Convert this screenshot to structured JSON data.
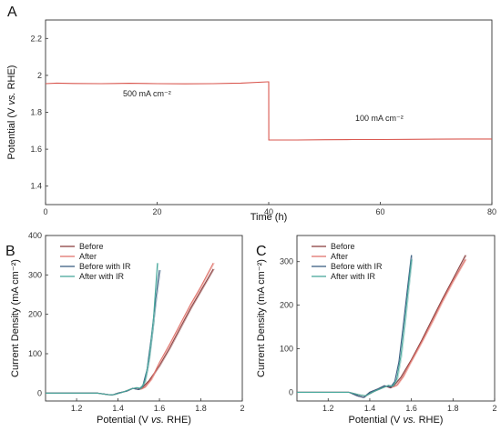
{
  "chart_data": [
    {
      "panel": "A",
      "type": "line",
      "xlabel": "Time (h)",
      "ylabel": "Potential (V vs. RHE)",
      "ylabel_parts": [
        "Potential (V ",
        "vs.",
        " RHE)"
      ],
      "xlim": [
        0,
        80
      ],
      "ylim": [
        1.3,
        2.3
      ],
      "xticks": [
        "0",
        "20",
        "40",
        "60",
        "80"
      ],
      "yticks": [
        "1.4",
        "1.6",
        "1.8",
        "2",
        "2.2"
      ],
      "annotations": [
        "500 mA cm⁻²",
        "100 mA cm⁻²"
      ],
      "color": "#d9574f",
      "series": [
        {
          "x": [
            0,
            2,
            5,
            10,
            15,
            18,
            20,
            25,
            30,
            35,
            39.8,
            40,
            40.01,
            45,
            50,
            55,
            60,
            65,
            70,
            75,
            80
          ],
          "y": [
            1.955,
            1.958,
            1.956,
            1.955,
            1.957,
            1.956,
            1.955,
            1.954,
            1.955,
            1.958,
            1.965,
            1.965,
            1.65,
            1.65,
            1.651,
            1.652,
            1.652,
            1.653,
            1.654,
            1.655,
            1.655
          ]
        }
      ]
    },
    {
      "panel": "B",
      "type": "line",
      "xlabel": "Potential (V vs. RHE)",
      "xlabel_parts": [
        "Potential (V ",
        "vs.",
        " RHE)"
      ],
      "ylabel": "Current Density (mA cm⁻²)",
      "xlim": [
        1.05,
        2.0
      ],
      "ylim": [
        -20,
        400
      ],
      "xticks": [
        "1.2",
        "1.4",
        "1.6",
        "1.8",
        "2"
      ],
      "yticks": [
        "0",
        "100",
        "200",
        "300",
        "400"
      ],
      "legend": [
        "Before",
        "After",
        "Before with IR",
        "After with IR"
      ],
      "legend_colors": [
        "#8b4040",
        "#e0746c",
        "#3c5f83",
        "#48a89c"
      ],
      "series": [
        {
          "name": "Before",
          "x": [
            1.05,
            1.3,
            1.34,
            1.37,
            1.4,
            1.44,
            1.47,
            1.5,
            1.52,
            1.55,
            1.6,
            1.65,
            1.7,
            1.75,
            1.8,
            1.86
          ],
          "y": [
            0,
            0,
            -3,
            -5,
            0,
            5,
            12,
            9,
            16,
            32,
            70,
            115,
            165,
            215,
            260,
            315
          ]
        },
        {
          "name": "After",
          "x": [
            1.05,
            1.3,
            1.35,
            1.38,
            1.42,
            1.46,
            1.49,
            1.51,
            1.53,
            1.56,
            1.6,
            1.65,
            1.7,
            1.75,
            1.8,
            1.86
          ],
          "y": [
            0,
            0,
            -4,
            -4,
            2,
            10,
            14,
            10,
            15,
            35,
            78,
            125,
            175,
            225,
            270,
            330
          ]
        },
        {
          "name": "Before with IR",
          "x": [
            1.05,
            1.3,
            1.34,
            1.37,
            1.4,
            1.44,
            1.47,
            1.5,
            1.52,
            1.54,
            1.56,
            1.58,
            1.6
          ],
          "y": [
            0,
            0,
            -3,
            -5,
            0,
            5,
            12,
            9,
            20,
            60,
            140,
            230,
            312
          ]
        },
        {
          "name": "After with IR",
          "x": [
            1.05,
            1.3,
            1.35,
            1.38,
            1.42,
            1.46,
            1.49,
            1.51,
            1.53,
            1.55,
            1.57,
            1.58,
            1.59
          ],
          "y": [
            0,
            0,
            -4,
            -4,
            2,
            10,
            14,
            12,
            30,
            90,
            180,
            255,
            330
          ]
        }
      ]
    },
    {
      "panel": "C",
      "type": "line",
      "xlabel": "Potential (V vs. RHE)",
      "xlabel_parts": [
        "Potential (V ",
        "vs.",
        " RHE)"
      ],
      "ylabel": "Current Density (mA cm⁻²)",
      "xlim": [
        1.05,
        2.0
      ],
      "ylim": [
        -20,
        360
      ],
      "xticks": [
        "1.2",
        "1.4",
        "1.6",
        "1.8",
        "2"
      ],
      "yticks": [
        "0",
        "100",
        "200",
        "300"
      ],
      "legend": [
        "Before",
        "After",
        "Before with IR",
        "After with IR"
      ],
      "legend_colors": [
        "#8b4040",
        "#e0746c",
        "#3c5f83",
        "#48a89c"
      ],
      "series": [
        {
          "name": "Before",
          "x": [
            1.05,
            1.3,
            1.34,
            1.37,
            1.4,
            1.44,
            1.47,
            1.5,
            1.52,
            1.55,
            1.6,
            1.65,
            1.7,
            1.75,
            1.8,
            1.86
          ],
          "y": [
            0,
            0,
            -8,
            -12,
            0,
            8,
            15,
            10,
            18,
            35,
            75,
            120,
            168,
            215,
            260,
            315
          ]
        },
        {
          "name": "After",
          "x": [
            1.05,
            1.3,
            1.35,
            1.38,
            1.42,
            1.46,
            1.49,
            1.51,
            1.53,
            1.56,
            1.6,
            1.65,
            1.7,
            1.75,
            1.8,
            1.86
          ],
          "y": [
            0,
            0,
            -6,
            -8,
            2,
            10,
            16,
            12,
            16,
            36,
            72,
            116,
            162,
            210,
            255,
            305
          ]
        },
        {
          "name": "Before with IR",
          "x": [
            1.05,
            1.3,
            1.34,
            1.37,
            1.4,
            1.44,
            1.47,
            1.5,
            1.52,
            1.54,
            1.56,
            1.58,
            1.6
          ],
          "y": [
            0,
            0,
            -8,
            -12,
            0,
            8,
            15,
            12,
            25,
            70,
            150,
            235,
            315
          ]
        },
        {
          "name": "After with IR",
          "x": [
            1.05,
            1.3,
            1.35,
            1.38,
            1.42,
            1.46,
            1.49,
            1.51,
            1.53,
            1.55,
            1.57,
            1.59,
            1.6
          ],
          "y": [
            0,
            0,
            -6,
            -8,
            2,
            10,
            16,
            14,
            30,
            85,
            170,
            260,
            305
          ]
        }
      ]
    }
  ]
}
